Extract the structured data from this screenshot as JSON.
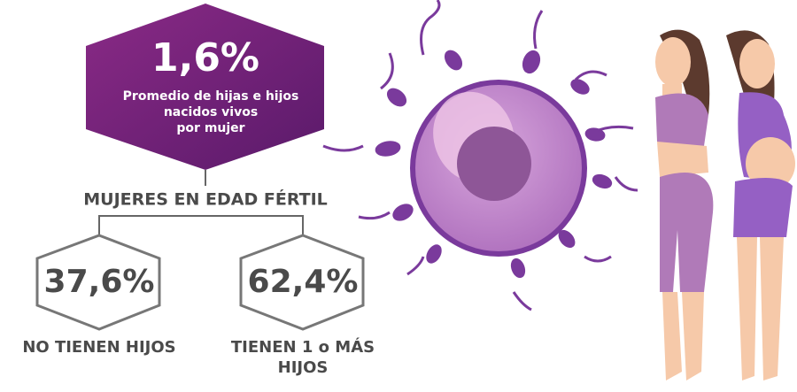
{
  "header": {
    "value": "1,6%",
    "caption_lines": [
      "Promedio de hijas e hijos",
      "nacidos vivos",
      "por mujer"
    ]
  },
  "group_title": "MUJERES EN EDAD FÉRTIL",
  "stats": [
    {
      "value": "37,6%",
      "label_lines": [
        "NO TIENEN HIJOS"
      ]
    },
    {
      "value": "62,4%",
      "label_lines": [
        "TIENEN 1 o MÁS",
        "HIJOS"
      ]
    }
  ]
}
